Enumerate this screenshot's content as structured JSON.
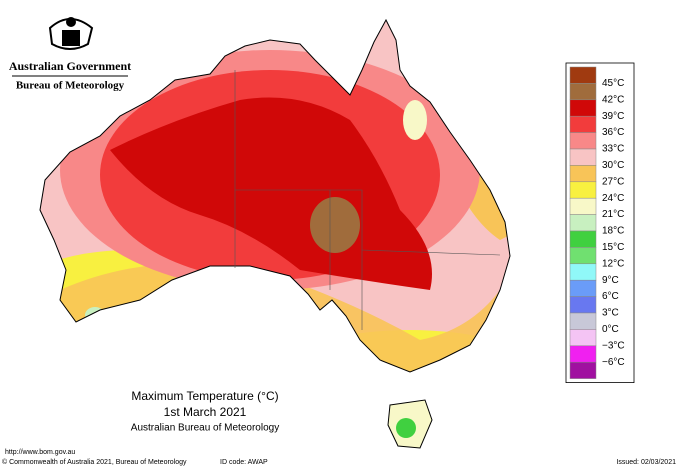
{
  "header": {
    "agency": "Australian Government",
    "bureau": "Bureau of Meteorology"
  },
  "legend": {
    "labels": [
      "45°C",
      "42°C",
      "39°C",
      "36°C",
      "33°C",
      "30°C",
      "27°C",
      "24°C",
      "21°C",
      "18°C",
      "15°C",
      "12°C",
      "9°C",
      "6°C",
      "3°C",
      "0°C",
      "−3°C",
      "−6°C"
    ],
    "colors": [
      "#a03a10",
      "#a06c3c",
      "#d00808",
      "#f23c3c",
      "#f88888",
      "#f8c4c4",
      "#f8c458",
      "#f8f040",
      "#f8f8c8",
      "#c8f0c0",
      "#40d040",
      "#70e070",
      "#90f8f8",
      "#6a9cf8",
      "#6878f0",
      "#c8c8d8",
      "#f4c4f4",
      "#f020f0",
      "#a010a0"
    ]
  },
  "title": {
    "line1": "Maximum Temperature (°C)",
    "line2": "1st March 2021",
    "line3": "Australian Bureau of Meteorology"
  },
  "footer": {
    "url": "http://www.bom.gov.au",
    "copyright": "© Commonwealth of Australia 2021, Bureau of Meteorology",
    "id": "ID code: AWAP",
    "issued": "Issued: 02/03/2021"
  }
}
